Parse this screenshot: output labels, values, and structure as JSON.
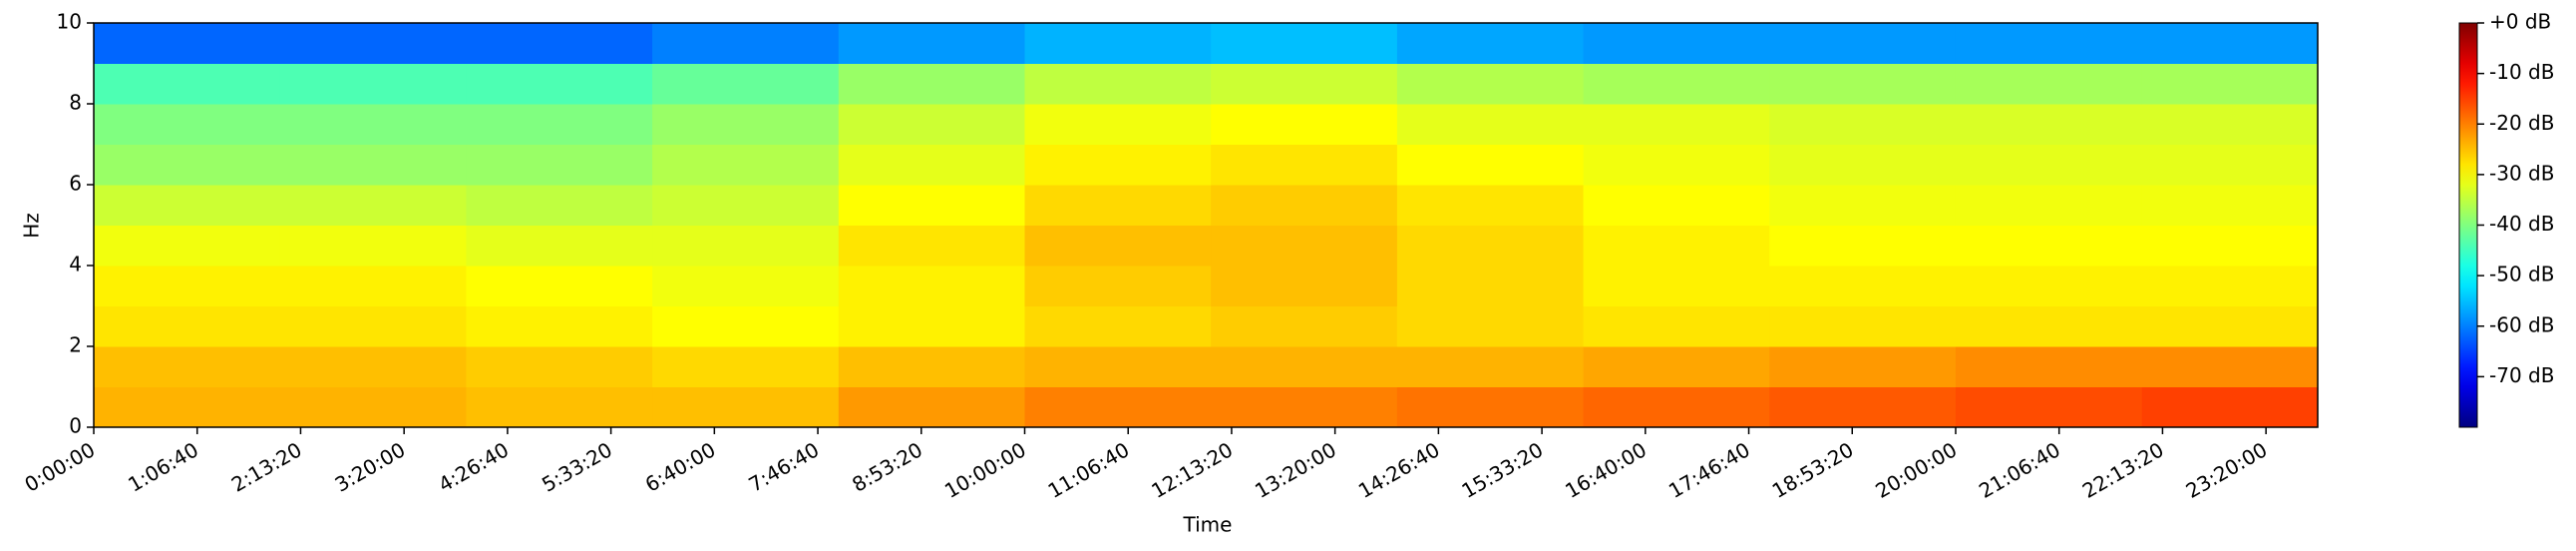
{
  "chart_data": {
    "type": "heatmap",
    "xlabel": "Time",
    "ylabel": "Hz",
    "colormap": "jet",
    "xlim": [
      0,
      86000
    ],
    "xticks": [
      {
        "value": 0,
        "label": "0:00:00"
      },
      {
        "value": 4000,
        "label": "1:06:40"
      },
      {
        "value": 8000,
        "label": "2:13:20"
      },
      {
        "value": 12000,
        "label": "3:20:00"
      },
      {
        "value": 16000,
        "label": "4:26:40"
      },
      {
        "value": 20000,
        "label": "5:33:20"
      },
      {
        "value": 24000,
        "label": "6:40:00"
      },
      {
        "value": 28000,
        "label": "7:46:40"
      },
      {
        "value": 32000,
        "label": "8:53:20"
      },
      {
        "value": 36000,
        "label": "10:00:00"
      },
      {
        "value": 40000,
        "label": "11:06:40"
      },
      {
        "value": 44000,
        "label": "12:13:20"
      },
      {
        "value": 48000,
        "label": "13:20:00"
      },
      {
        "value": 52000,
        "label": "14:26:40"
      },
      {
        "value": 56000,
        "label": "15:33:20"
      },
      {
        "value": 60000,
        "label": "16:40:00"
      },
      {
        "value": 64000,
        "label": "17:46:40"
      },
      {
        "value": 68000,
        "label": "18:53:20"
      },
      {
        "value": 72000,
        "label": "20:00:00"
      },
      {
        "value": 76000,
        "label": "21:06:40"
      },
      {
        "value": 80000,
        "label": "22:13:20"
      },
      {
        "value": 84000,
        "label": "23:20:00"
      }
    ],
    "ylim": [
      0,
      10
    ],
    "yticks": [
      0,
      2,
      4,
      6,
      8,
      10
    ],
    "xbins": [
      0,
      7200,
      14400,
      21600,
      28800,
      36000,
      43200,
      50400,
      57600,
      64800,
      72000,
      79200,
      86000
    ],
    "ybins": [
      0,
      1,
      2,
      3,
      4,
      5,
      6,
      7,
      8,
      9,
      10
    ],
    "z": [
      [
        -24,
        -24,
        -25,
        -25,
        -22,
        -20,
        -20,
        -19,
        -18,
        -17,
        -16,
        -15
      ],
      [
        -25,
        -25,
        -26,
        -27,
        -25,
        -24,
        -24,
        -24,
        -23,
        -22,
        -21,
        -21
      ],
      [
        -28,
        -28,
        -29,
        -30,
        -29,
        -27,
        -26,
        -27,
        -28,
        -28,
        -28,
        -28
      ],
      [
        -29,
        -29,
        -30,
        -31,
        -29,
        -26,
        -25,
        -27,
        -29,
        -29,
        -29,
        -29
      ],
      [
        -31,
        -31,
        -32,
        -32,
        -28,
        -25,
        -25,
        -27,
        -29,
        -30,
        -30,
        -30
      ],
      [
        -34,
        -34,
        -35,
        -34,
        -30,
        -27,
        -26,
        -28,
        -30,
        -31,
        -31,
        -31
      ],
      [
        -38,
        -38,
        -38,
        -36,
        -32,
        -29,
        -28,
        -30,
        -31,
        -32,
        -32,
        -32
      ],
      [
        -40,
        -40,
        -40,
        -38,
        -34,
        -31,
        -30,
        -32,
        -32,
        -33,
        -33,
        -33
      ],
      [
        -44,
        -44,
        -44,
        -42,
        -38,
        -35,
        -34,
        -36,
        -37,
        -37,
        -37,
        -37
      ],
      [
        -62,
        -62,
        -62,
        -60,
        -58,
        -56,
        -55,
        -57,
        -58,
        -58,
        -58,
        -58
      ]
    ],
    "clim": [
      -80,
      0
    ],
    "cticks": [
      {
        "value": 0,
        "label": "+0 dB"
      },
      {
        "value": -10,
        "label": "-10 dB"
      },
      {
        "value": -20,
        "label": "-20 dB"
      },
      {
        "value": -30,
        "label": "-30 dB"
      },
      {
        "value": -40,
        "label": "-40 dB"
      },
      {
        "value": -50,
        "label": "-50 dB"
      },
      {
        "value": -60,
        "label": "-60 dB"
      },
      {
        "value": -70,
        "label": "-70 dB"
      }
    ]
  }
}
